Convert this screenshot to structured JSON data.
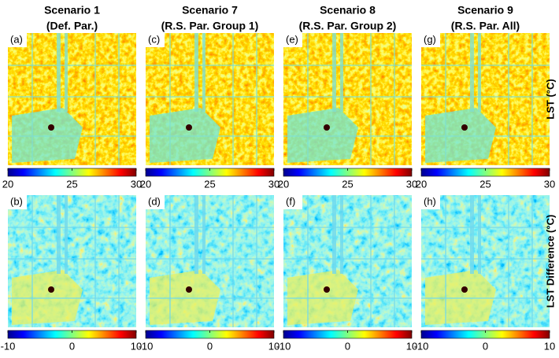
{
  "columns": [
    {
      "title": "Scenario 1",
      "subtitle": "(Def. Par.)",
      "panels": [
        "(a)",
        "(b)"
      ]
    },
    {
      "title": "Scenario 7",
      "subtitle": "(R.S. Par. Group 1)",
      "panels": [
        "(c)",
        "(d)"
      ]
    },
    {
      "title": "Scenario 8",
      "subtitle": "(R.S. Par. Group 2)",
      "panels": [
        "(e)",
        "(f)"
      ]
    },
    {
      "title": "Scenario 9",
      "subtitle": "(R.S. Par. All)",
      "panels": [
        "(g)",
        "(h)"
      ]
    }
  ],
  "rows": [
    {
      "label": "LST (°C)",
      "lim": [
        20,
        30
      ],
      "ticks": [
        20,
        25,
        30
      ]
    },
    {
      "label": "LST Difference (°C)",
      "lim": [
        -10,
        10
      ],
      "ticks": [
        -10,
        0,
        10
      ]
    }
  ]
}
